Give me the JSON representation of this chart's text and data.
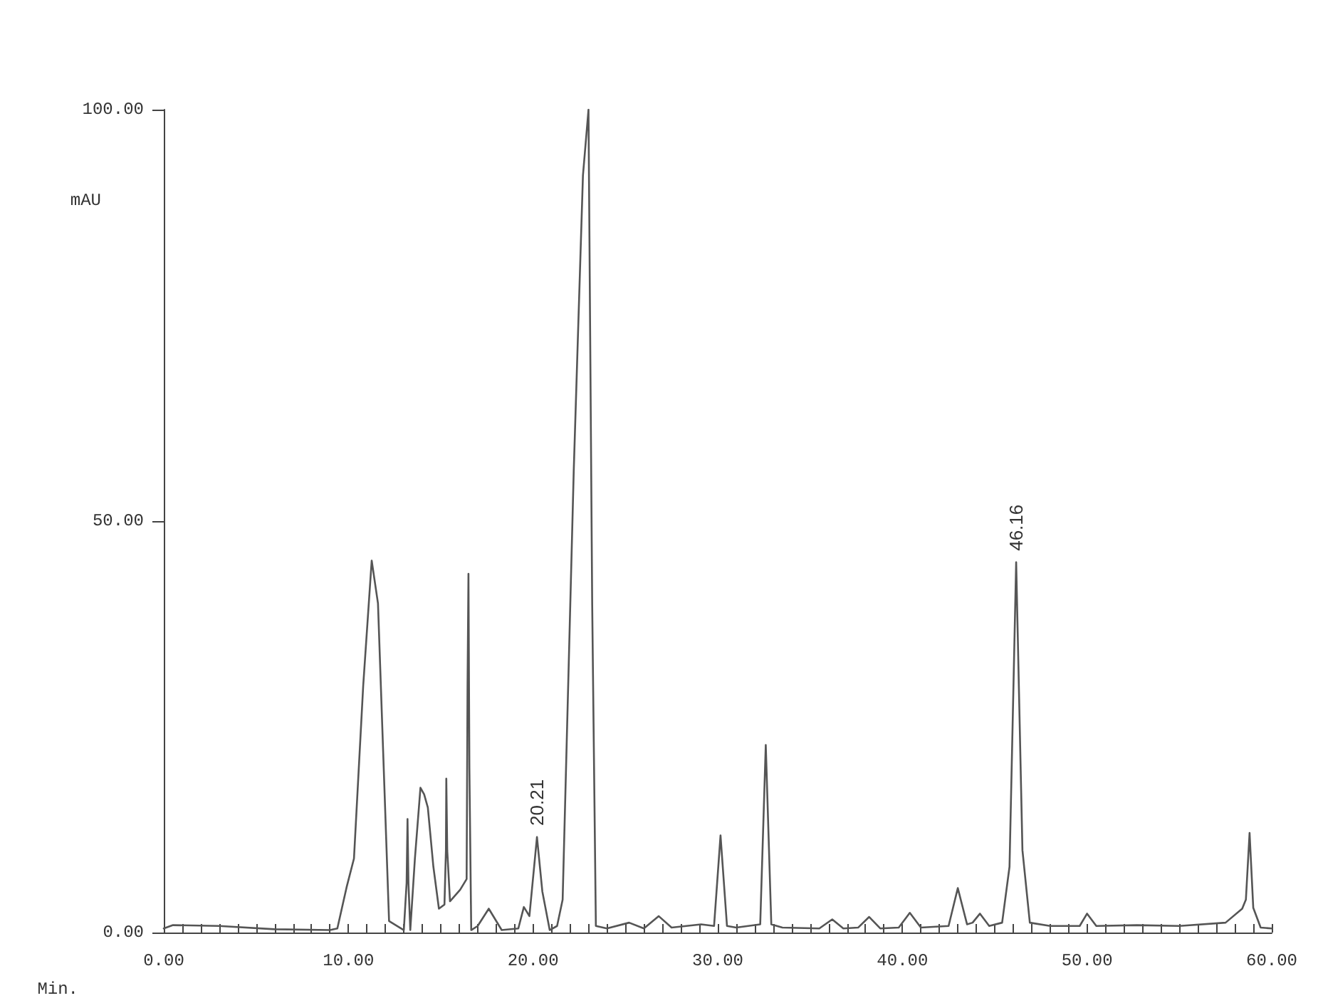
{
  "chart_data": {
    "type": "line",
    "xlabel": "Min.",
    "ylabel": "mAU",
    "xlim": [
      0,
      60
    ],
    "ylim": [
      0,
      100
    ],
    "xticks": [
      {
        "value": 0,
        "label": "0.00"
      },
      {
        "value": 1,
        "label": null
      },
      {
        "value": 2,
        "label": null
      },
      {
        "value": 3,
        "label": null
      },
      {
        "value": 4,
        "label": null
      },
      {
        "value": 5,
        "label": null
      },
      {
        "value": 6,
        "label": null
      },
      {
        "value": 7,
        "label": null
      },
      {
        "value": 8,
        "label": null
      },
      {
        "value": 9,
        "label": null
      },
      {
        "value": 10,
        "label": "10.00"
      },
      {
        "value": 11,
        "label": null
      },
      {
        "value": 12,
        "label": null
      },
      {
        "value": 13,
        "label": null
      },
      {
        "value": 14,
        "label": null
      },
      {
        "value": 15,
        "label": null
      },
      {
        "value": 16,
        "label": null
      },
      {
        "value": 17,
        "label": null
      },
      {
        "value": 18,
        "label": null
      },
      {
        "value": 19,
        "label": null
      },
      {
        "value": 20,
        "label": "20.00"
      },
      {
        "value": 21,
        "label": null
      },
      {
        "value": 22,
        "label": null
      },
      {
        "value": 23,
        "label": null
      },
      {
        "value": 24,
        "label": null
      },
      {
        "value": 25,
        "label": null
      },
      {
        "value": 26,
        "label": null
      },
      {
        "value": 27,
        "label": null
      },
      {
        "value": 28,
        "label": null
      },
      {
        "value": 29,
        "label": null
      },
      {
        "value": 30,
        "label": "30.00"
      },
      {
        "value": 31,
        "label": null
      },
      {
        "value": 32,
        "label": null
      },
      {
        "value": 33,
        "label": null
      },
      {
        "value": 34,
        "label": null
      },
      {
        "value": 35,
        "label": null
      },
      {
        "value": 36,
        "label": null
      },
      {
        "value": 37,
        "label": null
      },
      {
        "value": 38,
        "label": null
      },
      {
        "value": 39,
        "label": null
      },
      {
        "value": 40,
        "label": "40.00"
      },
      {
        "value": 41,
        "label": null
      },
      {
        "value": 42,
        "label": null
      },
      {
        "value": 43,
        "label": null
      },
      {
        "value": 44,
        "label": null
      },
      {
        "value": 45,
        "label": null
      },
      {
        "value": 46,
        "label": null
      },
      {
        "value": 47,
        "label": null
      },
      {
        "value": 48,
        "label": null
      },
      {
        "value": 49,
        "label": null
      },
      {
        "value": 50,
        "label": "50.00"
      },
      {
        "value": 51,
        "label": null
      },
      {
        "value": 52,
        "label": null
      },
      {
        "value": 53,
        "label": null
      },
      {
        "value": 54,
        "label": null
      },
      {
        "value": 55,
        "label": null
      },
      {
        "value": 56,
        "label": null
      },
      {
        "value": 57,
        "label": null
      },
      {
        "value": 58,
        "label": null
      },
      {
        "value": 59,
        "label": null
      },
      {
        "value": 60,
        "label": "60.00"
      }
    ],
    "yticks": [
      {
        "value": 0,
        "label": "0.00"
      },
      {
        "value": 50,
        "label": "50.00"
      },
      {
        "value": 100,
        "label": "100.00"
      }
    ],
    "grid": false,
    "marker": "none",
    "line_style": "solid",
    "series": [
      {
        "color": "#555555",
        "x": [
          0,
          0.5,
          3,
          6,
          9,
          9.4,
          9.9,
          10.3,
          10.8,
          11.26,
          11.6,
          12.2,
          13,
          13.15,
          13.2,
          13.25,
          13.35,
          13.6,
          13.9,
          14.1,
          14.3,
          14.6,
          14.9,
          15.2,
          15.28,
          15.3,
          15.35,
          15.5,
          16.05,
          16.4,
          16.45,
          16.5,
          16.55,
          16.65,
          17,
          17.6,
          18.3,
          19.2,
          19.5,
          19.8,
          20.21,
          20.5,
          20.9,
          21.3,
          21.6,
          22.2,
          22.7,
          23,
          23.2,
          23.4,
          24,
          25.2,
          26,
          26.8,
          27.5,
          29.1,
          29.8,
          30.15,
          30.5,
          31,
          32.3,
          32.6,
          32.9,
          33.5,
          35.5,
          36.2,
          36.8,
          37.6,
          38.2,
          38.8,
          39.8,
          40.4,
          41,
          42.5,
          43,
          43.5,
          43.8,
          44.2,
          44.7,
          45.4,
          45.8,
          46.16,
          46.5,
          46.9,
          48,
          49.6,
          50,
          50.5,
          52.7,
          55,
          57.5,
          58.4,
          58.6,
          58.8,
          59,
          59.4,
          60
        ],
        "values": [
          0.5,
          0.9,
          0.8,
          0.4,
          0.3,
          0.5,
          5.5,
          9,
          30,
          45.2,
          40,
          1.4,
          0.3,
          6,
          13.8,
          6,
          0.3,
          9,
          17.6,
          16.8,
          15.2,
          8,
          2.9,
          3.4,
          10,
          18.7,
          10,
          3.8,
          5.2,
          6.5,
          30,
          43.6,
          20,
          0.3,
          0.8,
          2.9,
          0.3,
          0.5,
          3.1,
          2,
          11.6,
          5,
          0.3,
          0.8,
          4,
          56,
          92,
          100,
          40,
          0.8,
          0.5,
          1.2,
          0.5,
          2,
          0.6,
          1,
          0.8,
          11.8,
          0.8,
          0.6,
          1,
          22.8,
          1,
          0.6,
          0.5,
          1.6,
          0.5,
          0.6,
          1.9,
          0.5,
          0.6,
          2.4,
          0.6,
          0.8,
          5.4,
          1,
          1.2,
          2.3,
          0.8,
          1.2,
          8,
          45,
          10,
          1.2,
          0.8,
          0.8,
          2.3,
          0.8,
          0.9,
          0.8,
          1.2,
          2.9,
          4,
          12.1,
          3,
          0.6,
          0.5
        ]
      }
    ],
    "annotations": [
      {
        "text": "20.21",
        "x": 20.21,
        "y": 11.6
      },
      {
        "text": "46.16",
        "x": 46.16,
        "y": 45
      }
    ]
  }
}
